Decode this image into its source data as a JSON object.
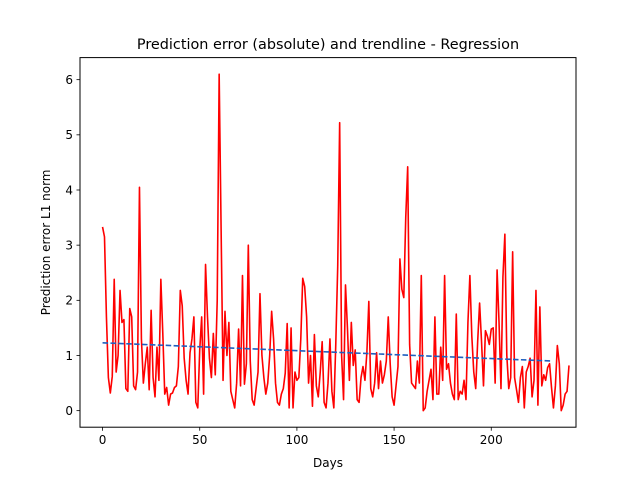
{
  "chart_data": {
    "type": "line",
    "title": "Prediction error (absolute) and trendline - Regression",
    "xlabel": "Days",
    "ylabel": "Prediction error L1 norm",
    "xlim": [
      -11.6,
      243.6
    ],
    "ylim": [
      -0.3,
      6.4
    ],
    "xticks": [
      0,
      50,
      100,
      150,
      200
    ],
    "yticks": [
      0,
      1,
      2,
      3,
      4,
      5,
      6
    ],
    "grid": false,
    "legend": "none",
    "series": [
      {
        "role": "error",
        "style": "solid",
        "color": "#ff0000",
        "x_start": 0,
        "x_step": 1,
        "values": [
          3.33,
          3.15,
          1.7,
          0.6,
          0.32,
          0.62,
          2.38,
          0.7,
          1.0,
          2.18,
          1.6,
          1.65,
          0.4,
          0.35,
          1.85,
          1.7,
          0.45,
          0.38,
          0.7,
          4.05,
          1.3,
          0.5,
          0.85,
          1.15,
          0.38,
          1.82,
          0.6,
          0.25,
          1.15,
          0.55,
          2.38,
          1.4,
          0.3,
          0.42,
          0.1,
          0.3,
          0.32,
          0.42,
          0.45,
          0.8,
          2.18,
          1.9,
          0.95,
          0.55,
          0.3,
          1.05,
          1.3,
          1.7,
          0.15,
          0.05,
          1.1,
          1.7,
          0.3,
          2.65,
          1.7,
          0.95,
          0.6,
          1.4,
          0.65,
          2.0,
          6.1,
          3.3,
          0.55,
          1.8,
          1.0,
          1.6,
          0.35,
          0.2,
          0.05,
          0.5,
          1.48,
          0.45,
          2.45,
          0.48,
          0.85,
          3.0,
          0.9,
          0.2,
          0.1,
          0.4,
          0.7,
          2.12,
          1.0,
          0.6,
          0.3,
          0.5,
          1.0,
          1.8,
          1.3,
          0.5,
          0.15,
          0.1,
          0.3,
          0.4,
          0.68,
          1.58,
          0.05,
          1.5,
          0.05,
          0.7,
          0.55,
          0.6,
          1.3,
          2.4,
          2.25,
          1.7,
          0.5,
          1.0,
          0.08,
          1.38,
          0.45,
          0.25,
          0.7,
          1.25,
          0.15,
          0.05,
          0.5,
          1.3,
          0.35,
          0.05,
          1.2,
          2.62,
          5.22,
          1.0,
          0.2,
          2.28,
          1.5,
          0.55,
          1.6,
          0.82,
          1.1,
          0.2,
          0.15,
          0.6,
          0.8,
          0.55,
          1.05,
          1.98,
          0.4,
          0.25,
          0.5,
          1.05,
          0.4,
          0.9,
          0.5,
          0.65,
          0.9,
          1.7,
          0.85,
          0.25,
          0.1,
          0.45,
          0.8,
          2.75,
          2.2,
          2.05,
          3.5,
          4.42,
          1.2,
          0.5,
          0.45,
          0.4,
          0.9,
          0.5,
          2.45,
          0.0,
          0.05,
          0.35,
          0.55,
          0.75,
          0.2,
          1.7,
          0.3,
          0.3,
          1.15,
          0.55,
          2.45,
          0.75,
          0.85,
          0.5,
          0.3,
          0.2,
          1.75,
          0.2,
          0.35,
          0.3,
          0.55,
          0.2,
          1.6,
          2.45,
          1.35,
          0.7,
          0.4,
          1.25,
          1.95,
          1.25,
          0.45,
          1.45,
          1.35,
          1.2,
          1.48,
          1.5,
          0.5,
          2.55,
          1.6,
          0.4,
          2.42,
          3.2,
          1.0,
          0.4,
          0.6,
          2.88,
          0.6,
          0.38,
          0.15,
          0.6,
          0.8,
          0.05,
          0.7,
          0.8,
          0.95,
          0.25,
          0.55,
          2.18,
          0.1,
          1.88,
          0.45,
          0.65,
          0.55,
          0.78,
          0.85,
          0.42,
          0.05,
          0.45,
          1.18,
          0.85,
          0.0,
          0.1,
          0.3,
          0.35,
          0.82
        ]
      },
      {
        "role": "trendline",
        "style": "dashed",
        "color": "#1f5fbf",
        "x": [
          0,
          231
        ],
        "values": [
          1.23,
          0.9
        ]
      }
    ]
  }
}
